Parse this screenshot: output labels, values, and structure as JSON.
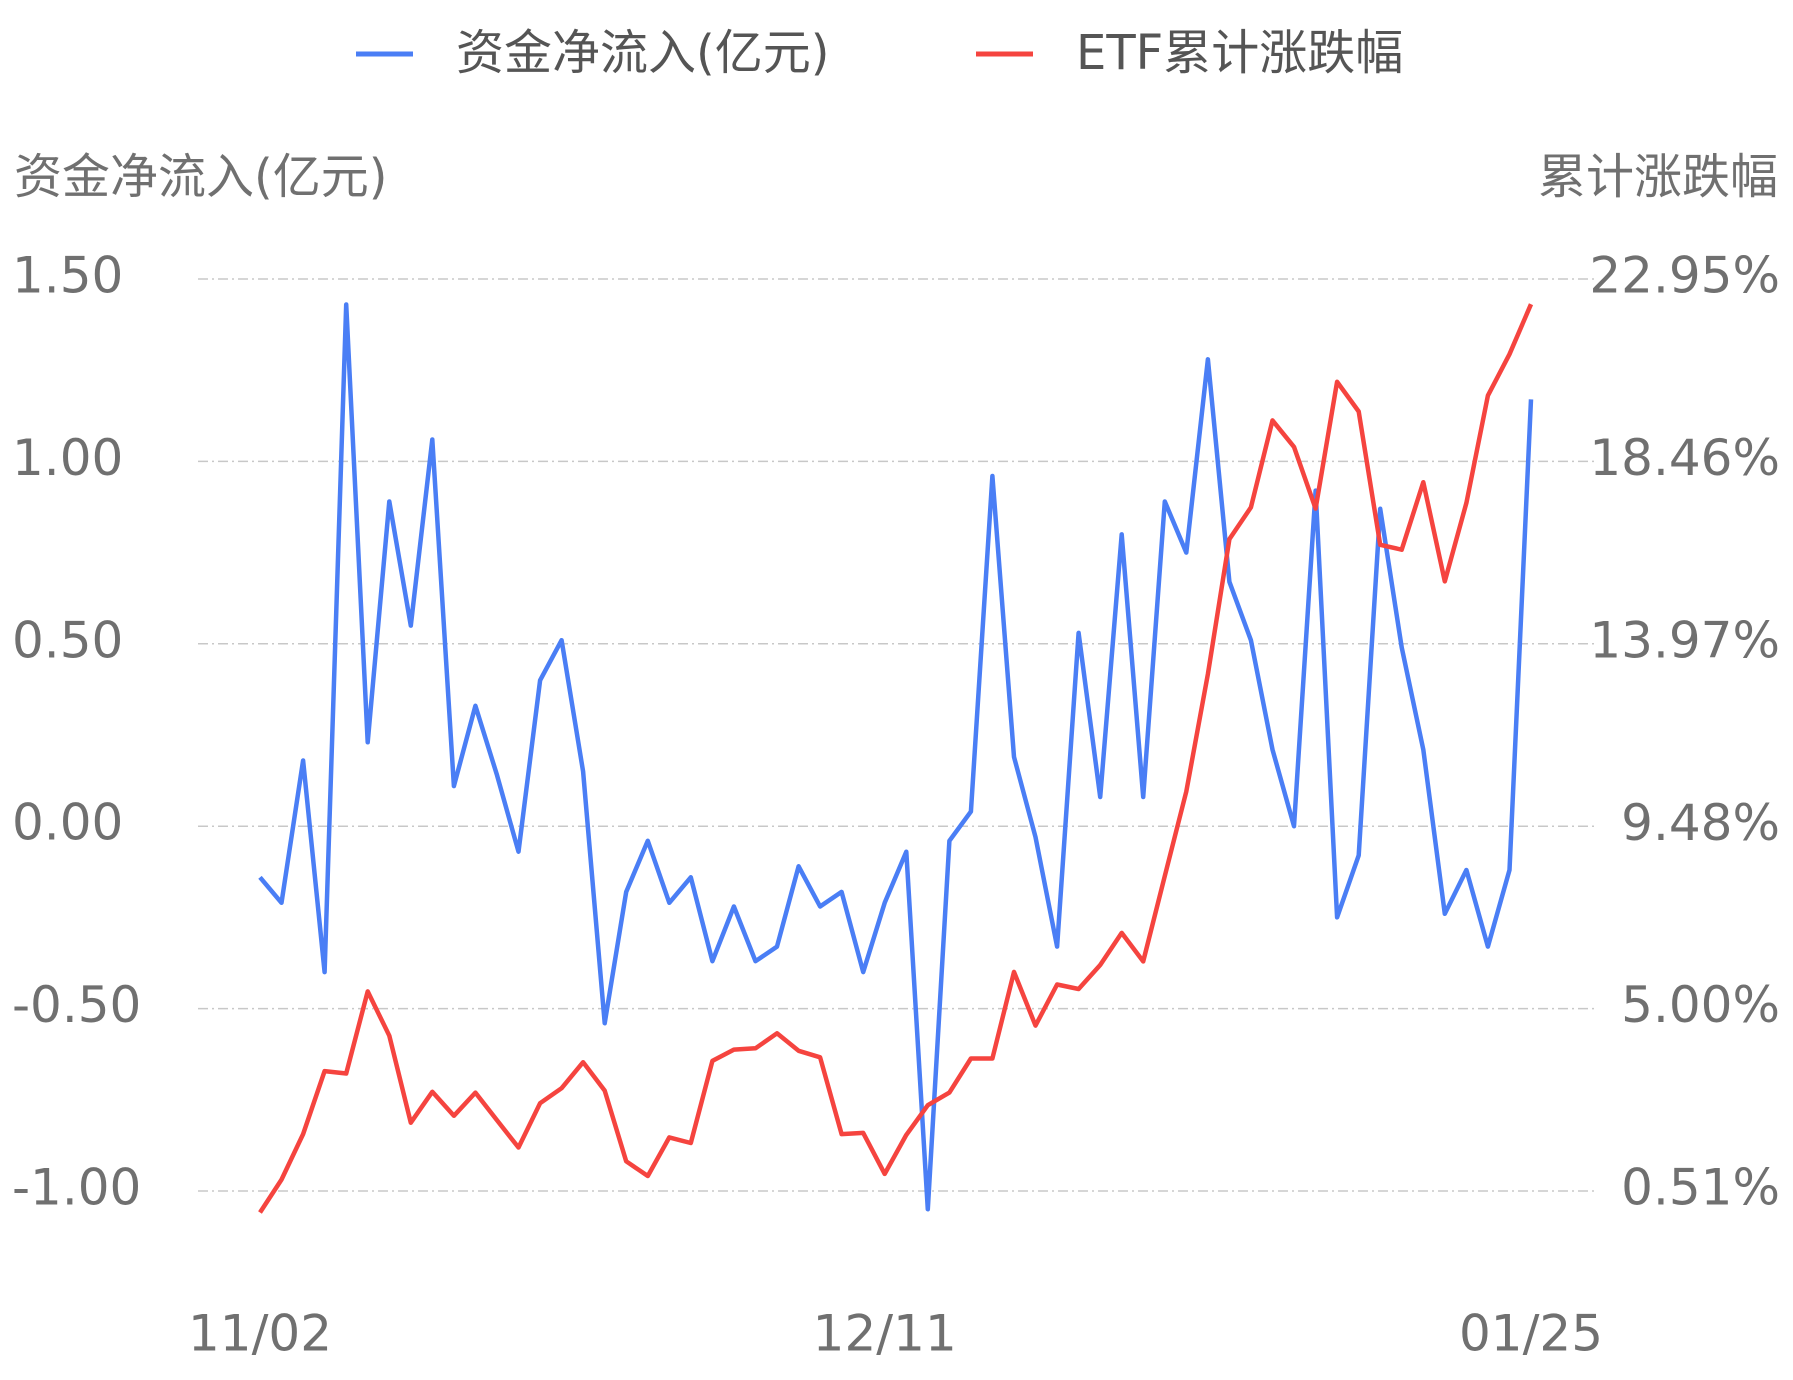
{
  "chart_data": {
    "type": "line",
    "y_label": "资金净流入(亿元)",
    "y2_label": "累计涨跌幅",
    "categories": [
      "11/02",
      null,
      null,
      null,
      null,
      null,
      null,
      null,
      null,
      null,
      null,
      null,
      null,
      null,
      null,
      null,
      null,
      null,
      null,
      null,
      null,
      null,
      null,
      null,
      null,
      null,
      null,
      null,
      null,
      "12/11",
      null,
      null,
      null,
      null,
      null,
      null,
      null,
      null,
      null,
      null,
      null,
      null,
      null,
      null,
      null,
      null,
      null,
      null,
      null,
      null,
      null,
      null,
      null,
      null,
      null,
      null,
      null,
      null,
      null,
      "01/25"
    ],
    "series": [
      {
        "name": "资金净流入(亿元)",
        "color": "#4a7ef5",
        "axis": "y",
        "values": [
          -0.14,
          -0.21,
          0.18,
          -0.4,
          1.43,
          0.23,
          0.89,
          0.55,
          1.06,
          0.11,
          0.33,
          0.14,
          -0.07,
          0.4,
          0.51,
          0.15,
          -0.54,
          -0.18,
          -0.04,
          -0.21,
          -0.14,
          -0.37,
          -0.22,
          -0.37,
          -0.33,
          -0.11,
          -0.22,
          -0.18,
          -0.4,
          -0.21,
          -0.07,
          -1.05,
          -0.04,
          0.04,
          0.96,
          0.19,
          -0.03,
          -0.33,
          0.53,
          0.08,
          0.8,
          0.08,
          0.89,
          0.75,
          1.28,
          0.67,
          0.51,
          0.21,
          0.0,
          0.92,
          -0.25,
          -0.08,
          0.87,
          0.49,
          0.21,
          -0.24,
          -0.12,
          -0.33,
          -0.12,
          1.17
        ]
      },
      {
        "name": "ETF累计涨跌幅",
        "color": "#f5443f",
        "axis": "y2",
        "values": [
          -0.02,
          0.79,
          1.91,
          3.46,
          3.4,
          5.42,
          4.33,
          2.19,
          2.95,
          2.36,
          2.93,
          2.25,
          1.58,
          2.67,
          3.04,
          3.68,
          2.98,
          1.24,
          0.88,
          1.83,
          1.69,
          3.71,
          3.99,
          4.02,
          4.39,
          3.96,
          3.8,
          1.91,
          1.94,
          0.93,
          1.89,
          2.62,
          2.93,
          3.77,
          3.77,
          5.9,
          4.58,
          5.59,
          5.48,
          6.07,
          6.86,
          6.16,
          8.26,
          10.34,
          13.23,
          16.55,
          17.33,
          19.47,
          18.82,
          17.3,
          20.42,
          19.69,
          16.41,
          16.29,
          17.95,
          15.51,
          17.44,
          20.08,
          21.1,
          22.33
        ]
      }
    ],
    "ylim": [
      -1,
      1.5
    ],
    "yticks": [
      {
        "value": -1,
        "label": "-1.00"
      },
      {
        "value": -0.5,
        "label": "-0.50"
      },
      {
        "value": 0,
        "label": "0.00"
      },
      {
        "value": 0.5,
        "label": "0.50"
      },
      {
        "value": 1,
        "label": "1.00"
      },
      {
        "value": 1.5,
        "label": "1.50"
      }
    ],
    "y2lim": [
      0.51,
      22.95
    ],
    "y2ticks": [
      {
        "value": 0.51,
        "label": "0.51%"
      },
      {
        "value": 5.0,
        "label": "5.00%"
      },
      {
        "value": 9.48,
        "label": "9.48%"
      },
      {
        "value": 13.97,
        "label": "13.97%"
      },
      {
        "value": 18.46,
        "label": "18.46%"
      },
      {
        "value": 22.95,
        "label": "22.95%"
      }
    ],
    "grid": true,
    "legend": "top"
  }
}
